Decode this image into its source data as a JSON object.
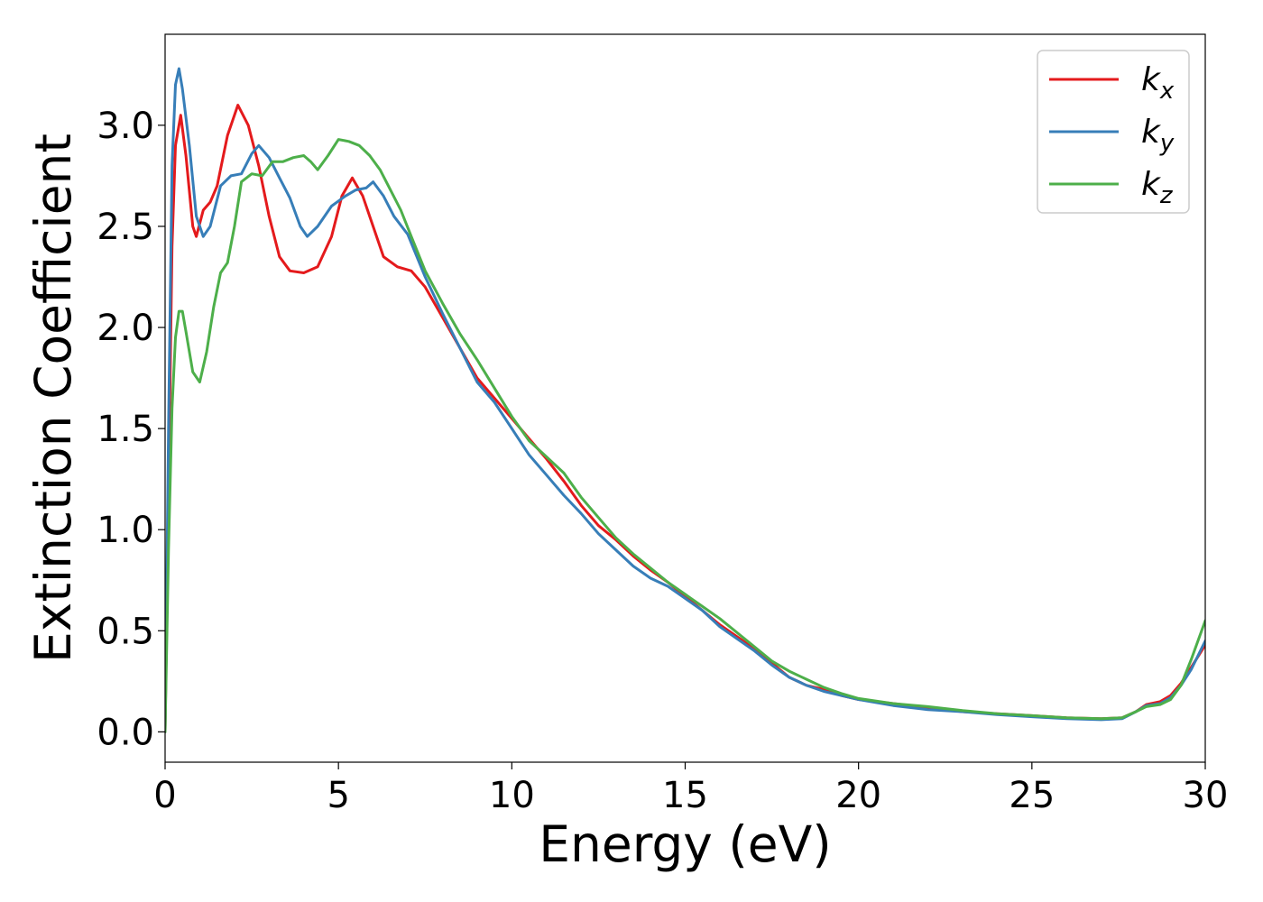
{
  "chart_data": {
    "type": "line",
    "title": "",
    "xlabel": "Energy (eV)",
    "ylabel": "Extinction Coefficient",
    "xlim": [
      0,
      30
    ],
    "ylim": [
      -0.15,
      3.45
    ],
    "xticks": [
      0,
      5,
      10,
      15,
      20,
      25,
      30
    ],
    "xtick_labels": [
      "0",
      "5",
      "10",
      "15",
      "20",
      "25",
      "30"
    ],
    "yticks": [
      0.0,
      0.5,
      1.0,
      1.5,
      2.0,
      2.5,
      3.0
    ],
    "ytick_labels": [
      "0.0",
      "0.5",
      "1.0",
      "1.5",
      "2.0",
      "2.5",
      "3.0"
    ],
    "grid": false,
    "legend_position": "top-right",
    "series": [
      {
        "name": "k_x",
        "base": "k",
        "subscript": "x",
        "color": "#e41a1c",
        "points": [
          [
            0,
            0
          ],
          [
            0.1,
            1.2
          ],
          [
            0.2,
            2.4
          ],
          [
            0.3,
            2.9
          ],
          [
            0.45,
            3.05
          ],
          [
            0.6,
            2.85
          ],
          [
            0.8,
            2.5
          ],
          [
            0.9,
            2.45
          ],
          [
            1.1,
            2.58
          ],
          [
            1.3,
            2.62
          ],
          [
            1.5,
            2.7
          ],
          [
            1.8,
            2.95
          ],
          [
            2.1,
            3.1
          ],
          [
            2.4,
            3.0
          ],
          [
            2.7,
            2.8
          ],
          [
            3.0,
            2.55
          ],
          [
            3.3,
            2.35
          ],
          [
            3.6,
            2.28
          ],
          [
            4.0,
            2.27
          ],
          [
            4.4,
            2.3
          ],
          [
            4.8,
            2.45
          ],
          [
            5.1,
            2.65
          ],
          [
            5.4,
            2.74
          ],
          [
            5.7,
            2.65
          ],
          [
            6.0,
            2.5
          ],
          [
            6.3,
            2.35
          ],
          [
            6.7,
            2.3
          ],
          [
            7.1,
            2.28
          ],
          [
            7.5,
            2.2
          ],
          [
            8.0,
            2.05
          ],
          [
            8.5,
            1.9
          ],
          [
            9.0,
            1.75
          ],
          [
            9.5,
            1.65
          ],
          [
            10.0,
            1.55
          ],
          [
            10.5,
            1.45
          ],
          [
            11.0,
            1.35
          ],
          [
            11.5,
            1.24
          ],
          [
            12.0,
            1.12
          ],
          [
            12.5,
            1.02
          ],
          [
            13.0,
            0.95
          ],
          [
            13.5,
            0.87
          ],
          [
            14.0,
            0.8
          ],
          [
            14.5,
            0.74
          ],
          [
            15.0,
            0.67
          ],
          [
            15.5,
            0.6
          ],
          [
            16.0,
            0.53
          ],
          [
            16.5,
            0.47
          ],
          [
            17.0,
            0.41
          ],
          [
            17.5,
            0.34
          ],
          [
            18.0,
            0.27
          ],
          [
            18.5,
            0.23
          ],
          [
            19.0,
            0.21
          ],
          [
            19.5,
            0.18
          ],
          [
            20.0,
            0.16
          ],
          [
            21.0,
            0.14
          ],
          [
            22.0,
            0.12
          ],
          [
            23.0,
            0.1
          ],
          [
            24.0,
            0.09
          ],
          [
            25.0,
            0.08
          ],
          [
            26.0,
            0.07
          ],
          [
            27.0,
            0.065
          ],
          [
            27.6,
            0.07
          ],
          [
            28.0,
            0.1
          ],
          [
            28.3,
            0.135
          ],
          [
            28.7,
            0.15
          ],
          [
            29.0,
            0.18
          ],
          [
            29.3,
            0.24
          ],
          [
            29.6,
            0.32
          ],
          [
            30.0,
            0.43
          ]
        ]
      },
      {
        "name": "k_y",
        "base": "k",
        "subscript": "y",
        "color": "#377eb8",
        "points": [
          [
            0,
            0
          ],
          [
            0.1,
            1.5
          ],
          [
            0.2,
            2.8
          ],
          [
            0.3,
            3.2
          ],
          [
            0.4,
            3.28
          ],
          [
            0.5,
            3.18
          ],
          [
            0.7,
            2.9
          ],
          [
            0.9,
            2.55
          ],
          [
            1.1,
            2.45
          ],
          [
            1.3,
            2.5
          ],
          [
            1.6,
            2.7
          ],
          [
            1.9,
            2.75
          ],
          [
            2.2,
            2.76
          ],
          [
            2.5,
            2.86
          ],
          [
            2.7,
            2.9
          ],
          [
            3.0,
            2.84
          ],
          [
            3.3,
            2.74
          ],
          [
            3.6,
            2.64
          ],
          [
            3.9,
            2.5
          ],
          [
            4.1,
            2.45
          ],
          [
            4.4,
            2.5
          ],
          [
            4.8,
            2.6
          ],
          [
            5.2,
            2.65
          ],
          [
            5.5,
            2.68
          ],
          [
            5.8,
            2.69
          ],
          [
            6.0,
            2.72
          ],
          [
            6.3,
            2.65
          ],
          [
            6.6,
            2.55
          ],
          [
            7.0,
            2.46
          ],
          [
            7.5,
            2.25
          ],
          [
            8.0,
            2.07
          ],
          [
            8.5,
            1.9
          ],
          [
            9.0,
            1.73
          ],
          [
            9.5,
            1.63
          ],
          [
            10.0,
            1.5
          ],
          [
            10.5,
            1.37
          ],
          [
            11.0,
            1.27
          ],
          [
            11.5,
            1.17
          ],
          [
            12.0,
            1.08
          ],
          [
            12.5,
            0.98
          ],
          [
            13.0,
            0.9
          ],
          [
            13.5,
            0.82
          ],
          [
            14.0,
            0.76
          ],
          [
            14.5,
            0.72
          ],
          [
            15.0,
            0.66
          ],
          [
            15.5,
            0.6
          ],
          [
            16.0,
            0.52
          ],
          [
            16.5,
            0.46
          ],
          [
            17.0,
            0.4
          ],
          [
            17.5,
            0.33
          ],
          [
            18.0,
            0.27
          ],
          [
            18.5,
            0.23
          ],
          [
            19.0,
            0.2
          ],
          [
            19.5,
            0.18
          ],
          [
            20.0,
            0.16
          ],
          [
            21.0,
            0.13
          ],
          [
            22.0,
            0.11
          ],
          [
            23.0,
            0.1
          ],
          [
            24.0,
            0.085
          ],
          [
            25.0,
            0.075
          ],
          [
            26.0,
            0.065
          ],
          [
            27.0,
            0.06
          ],
          [
            27.6,
            0.065
          ],
          [
            28.0,
            0.1
          ],
          [
            28.3,
            0.13
          ],
          [
            28.7,
            0.14
          ],
          [
            29.0,
            0.17
          ],
          [
            29.3,
            0.23
          ],
          [
            29.6,
            0.31
          ],
          [
            30.0,
            0.45
          ]
        ]
      },
      {
        "name": "k_z",
        "base": "k",
        "subscript": "z",
        "color": "#4daf4a",
        "points": [
          [
            0,
            0
          ],
          [
            0.1,
            0.9
          ],
          [
            0.2,
            1.6
          ],
          [
            0.3,
            1.95
          ],
          [
            0.4,
            2.08
          ],
          [
            0.5,
            2.08
          ],
          [
            0.6,
            1.98
          ],
          [
            0.8,
            1.78
          ],
          [
            1.0,
            1.73
          ],
          [
            1.2,
            1.88
          ],
          [
            1.4,
            2.1
          ],
          [
            1.6,
            2.27
          ],
          [
            1.8,
            2.32
          ],
          [
            2.0,
            2.5
          ],
          [
            2.2,
            2.72
          ],
          [
            2.5,
            2.76
          ],
          [
            2.8,
            2.75
          ],
          [
            3.1,
            2.82
          ],
          [
            3.4,
            2.82
          ],
          [
            3.7,
            2.84
          ],
          [
            4.0,
            2.85
          ],
          [
            4.2,
            2.82
          ],
          [
            4.4,
            2.78
          ],
          [
            4.7,
            2.85
          ],
          [
            5.0,
            2.93
          ],
          [
            5.3,
            2.92
          ],
          [
            5.6,
            2.9
          ],
          [
            5.9,
            2.85
          ],
          [
            6.2,
            2.78
          ],
          [
            6.5,
            2.68
          ],
          [
            6.8,
            2.58
          ],
          [
            7.1,
            2.45
          ],
          [
            7.5,
            2.28
          ],
          [
            8.0,
            2.12
          ],
          [
            8.5,
            1.97
          ],
          [
            9.0,
            1.84
          ],
          [
            9.5,
            1.7
          ],
          [
            10.0,
            1.56
          ],
          [
            10.5,
            1.44
          ],
          [
            11.0,
            1.36
          ],
          [
            11.5,
            1.28
          ],
          [
            12.0,
            1.16
          ],
          [
            12.5,
            1.06
          ],
          [
            13.0,
            0.96
          ],
          [
            13.5,
            0.88
          ],
          [
            14.0,
            0.81
          ],
          [
            14.5,
            0.74
          ],
          [
            15.0,
            0.68
          ],
          [
            15.5,
            0.62
          ],
          [
            16.0,
            0.56
          ],
          [
            16.5,
            0.49
          ],
          [
            17.0,
            0.42
          ],
          [
            17.5,
            0.35
          ],
          [
            18.0,
            0.3
          ],
          [
            18.5,
            0.26
          ],
          [
            19.0,
            0.22
          ],
          [
            19.5,
            0.19
          ],
          [
            20.0,
            0.165
          ],
          [
            21.0,
            0.14
          ],
          [
            22.0,
            0.125
          ],
          [
            23.0,
            0.105
          ],
          [
            24.0,
            0.09
          ],
          [
            25.0,
            0.08
          ],
          [
            26.0,
            0.07
          ],
          [
            27.0,
            0.065
          ],
          [
            27.6,
            0.07
          ],
          [
            28.0,
            0.1
          ],
          [
            28.3,
            0.125
          ],
          [
            28.7,
            0.135
          ],
          [
            29.0,
            0.16
          ],
          [
            29.3,
            0.23
          ],
          [
            29.6,
            0.36
          ],
          [
            30.0,
            0.55
          ]
        ]
      }
    ]
  }
}
